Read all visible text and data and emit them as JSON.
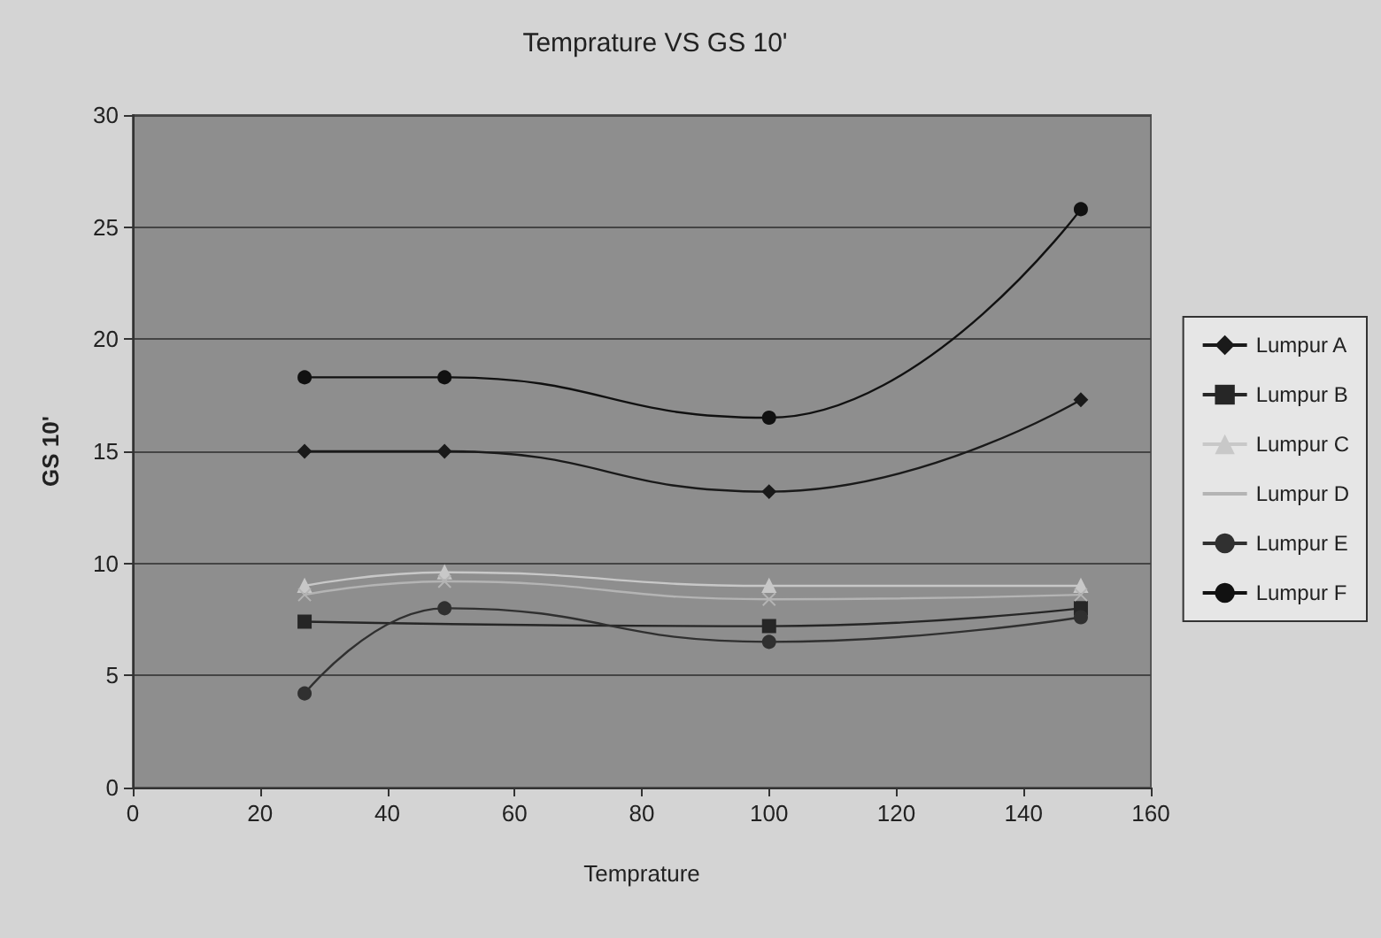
{
  "chart_data": {
    "type": "line",
    "title": "Temprature VS GS 10'",
    "xlabel": "Temprature",
    "ylabel": "GS 10'",
    "x": [
      27,
      49,
      100,
      149
    ],
    "series": [
      {
        "name": "Lumpur A",
        "color": "#1a1a1a",
        "marker": "diamond",
        "values": [
          15,
          15,
          13.2,
          17.3
        ]
      },
      {
        "name": "Lumpur B",
        "color": "#262626",
        "marker": "square",
        "values": [
          7.4,
          null,
          7.2,
          8
        ]
      },
      {
        "name": "Lumpur C",
        "color": "#c8c8c8",
        "marker": "triangle",
        "values": [
          9,
          9.6,
          9,
          9
        ]
      },
      {
        "name": "Lumpur D",
        "color": "#b4b4b4",
        "marker": "cross",
        "values": [
          8.6,
          9.2,
          8.4,
          8.6
        ]
      },
      {
        "name": "Lumpur E",
        "color": "#303030",
        "marker": "circle",
        "values": [
          4.2,
          8,
          6.5,
          7.6
        ]
      },
      {
        "name": "Lumpur F",
        "color": "#111111",
        "marker": "circle",
        "values": [
          18.3,
          18.3,
          16.5,
          25.8
        ]
      }
    ],
    "xlim": [
      0,
      160
    ],
    "xticks": [
      0,
      20,
      40,
      60,
      80,
      100,
      120,
      140,
      160
    ],
    "ylim": [
      0,
      30
    ],
    "yticks": [
      0,
      5,
      10,
      15,
      20,
      25,
      30
    ],
    "grid": "y",
    "legend": "right",
    "line_style": "solid"
  }
}
